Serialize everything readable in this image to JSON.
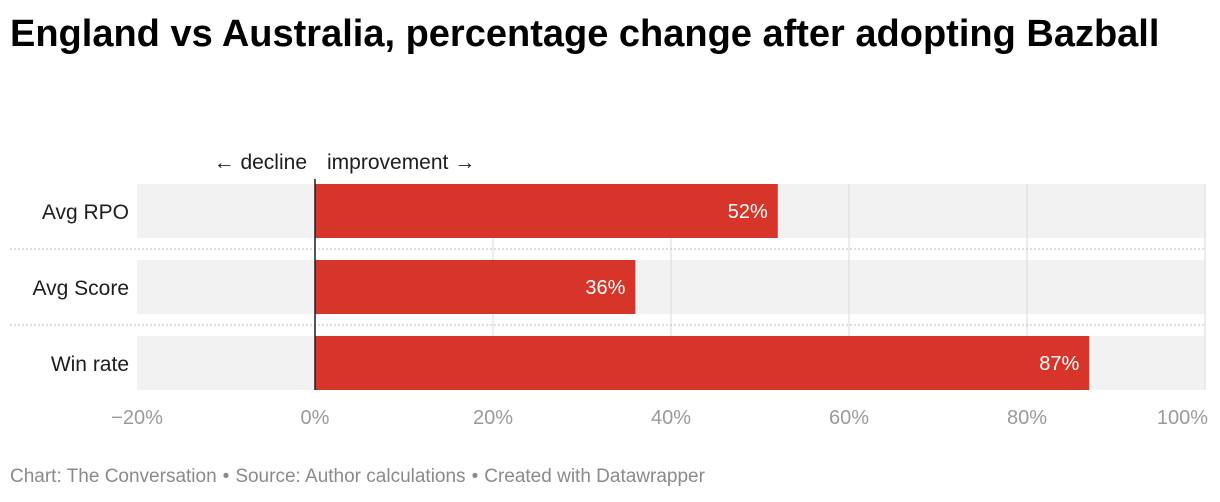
{
  "chart_data": {
    "type": "bar",
    "orientation": "horizontal",
    "title": "England vs Australia, percentage change after adopting Bazball",
    "categories": [
      "Avg RPO",
      "Avg Score",
      "Win rate"
    ],
    "values": [
      52,
      36,
      87
    ],
    "data_labels": [
      "52%",
      "36%",
      "87%"
    ],
    "annotation_left": "← decline",
    "annotation_right": "improvement →",
    "xlim": [
      -20,
      100
    ],
    "x_ticks": [
      -20,
      0,
      20,
      40,
      60,
      80,
      100
    ],
    "x_tick_labels": [
      "−20%",
      "0%",
      "20%",
      "40%",
      "60%",
      "80%",
      "100%"
    ],
    "grid": true,
    "bar_color": "#d7342a",
    "track_color": "#f2f2f2"
  },
  "footer": {
    "chart_credit": "Chart: The Conversation",
    "source": "Source: Author calculations",
    "created_with": "Created with Datawrapper",
    "separator": "•"
  }
}
